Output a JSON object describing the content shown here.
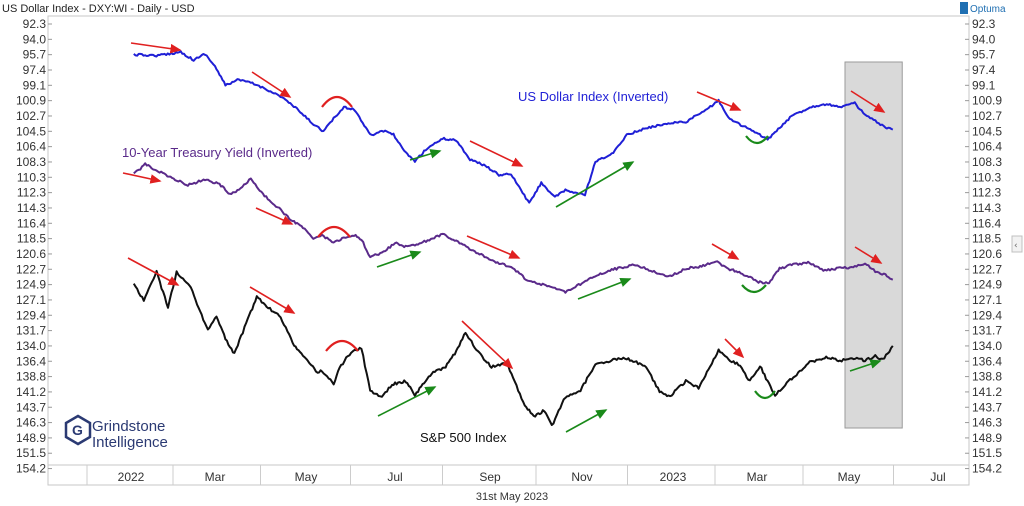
{
  "header": {
    "title": "US Dollar Index - DXY:WI - Daily - USD",
    "brand": "Optuma"
  },
  "footer": {
    "date": "31st May 2023"
  },
  "logo": {
    "line1": "Grindstone",
    "line2": "Intelligence"
  },
  "chart_data": {
    "type": "line",
    "y_axis": {
      "inverted": true,
      "ticks": [
        "92.3",
        "94.0",
        "95.7",
        "97.4",
        "99.1",
        "100.9",
        "102.7",
        "104.5",
        "106.4",
        "108.3",
        "110.3",
        "112.3",
        "114.3",
        "116.4",
        "118.5",
        "120.6",
        "122.7",
        "124.9",
        "127.1",
        "129.4",
        "131.7",
        "134.0",
        "136.4",
        "138.8",
        "141.2",
        "143.7",
        "146.3",
        "148.9",
        "151.5",
        "154.2"
      ]
    },
    "x_axis": {
      "categories": [
        "2022",
        "Mar",
        "May",
        "Jul",
        "Sep",
        "Nov",
        "2023",
        "Mar",
        "May",
        "Jul"
      ]
    },
    "series": [
      {
        "name": "US Dollar Index (Inverted)",
        "color": "#1f1fd6",
        "points": [
          [
            "2022-01-03",
            95.7
          ],
          [
            "2022-01-20",
            95.8
          ],
          [
            "2022-02-05",
            95.4
          ],
          [
            "2022-02-14",
            96.3
          ],
          [
            "2022-02-22",
            95.6
          ],
          [
            "2022-03-01",
            97.0
          ],
          [
            "2022-03-08",
            99.1
          ],
          [
            "2022-03-16",
            98.5
          ],
          [
            "2022-03-25",
            98.8
          ],
          [
            "2022-04-05",
            99.6
          ],
          [
            "2022-04-15",
            100.5
          ],
          [
            "2022-04-25",
            101.9
          ],
          [
            "2022-05-05",
            103.5
          ],
          [
            "2022-05-13",
            104.5
          ],
          [
            "2022-05-20",
            103.0
          ],
          [
            "2022-05-27",
            101.7
          ],
          [
            "2022-06-03",
            101.9
          ],
          [
            "2022-06-10",
            103.8
          ],
          [
            "2022-06-15",
            105.0
          ],
          [
            "2022-06-22",
            104.4
          ],
          [
            "2022-06-30",
            104.9
          ],
          [
            "2022-07-07",
            107.0
          ],
          [
            "2022-07-14",
            108.2
          ],
          [
            "2022-07-22",
            106.6
          ],
          [
            "2022-08-01",
            105.4
          ],
          [
            "2022-08-10",
            105.6
          ],
          [
            "2022-08-19",
            108.0
          ],
          [
            "2022-08-29",
            108.8
          ],
          [
            "2022-09-07",
            110.0
          ],
          [
            "2022-09-15",
            109.9
          ],
          [
            "2022-09-27",
            113.7
          ],
          [
            "2022-10-05",
            111.0
          ],
          [
            "2022-10-14",
            112.9
          ],
          [
            "2022-10-21",
            112.0
          ],
          [
            "2022-11-03",
            112.6
          ],
          [
            "2022-11-10",
            108.3
          ],
          [
            "2022-11-22",
            107.2
          ],
          [
            "2022-12-01",
            104.9
          ],
          [
            "2022-12-15",
            104.1
          ],
          [
            "2022-12-30",
            103.5
          ],
          [
            "2023-01-10",
            103.4
          ],
          [
            "2023-01-25",
            101.9
          ],
          [
            "2023-02-02",
            100.9
          ],
          [
            "2023-02-10",
            103.1
          ],
          [
            "2023-02-22",
            104.1
          ],
          [
            "2023-03-08",
            105.5
          ],
          [
            "2023-03-15",
            104.3
          ],
          [
            "2023-03-24",
            102.7
          ],
          [
            "2023-04-05",
            101.7
          ],
          [
            "2023-04-14",
            101.3
          ],
          [
            "2023-04-26",
            101.6
          ],
          [
            "2023-05-05",
            101.2
          ],
          [
            "2023-05-12",
            102.6
          ],
          [
            "2023-05-19",
            103.3
          ],
          [
            "2023-05-26",
            104.1
          ],
          [
            "2023-05-31",
            104.3
          ]
        ]
      },
      {
        "name": "10-Year Treasury Yield (Inverted)",
        "color": "#5a2a8a",
        "points": [
          [
            "2022-01-03",
            109.9
          ],
          [
            "2022-01-11",
            108.6
          ],
          [
            "2022-01-20",
            109.5
          ],
          [
            "2022-02-01",
            110.6
          ],
          [
            "2022-02-10",
            111.3
          ],
          [
            "2022-02-22",
            110.6
          ],
          [
            "2022-03-04",
            111.2
          ],
          [
            "2022-03-11",
            112.5
          ],
          [
            "2022-03-17",
            111.9
          ],
          [
            "2022-03-25",
            110.5
          ],
          [
            "2022-04-01",
            112.3
          ],
          [
            "2022-04-12",
            114.2
          ],
          [
            "2022-04-22",
            116.1
          ],
          [
            "2022-04-29",
            117.0
          ],
          [
            "2022-05-06",
            118.6
          ],
          [
            "2022-05-12",
            118.0
          ],
          [
            "2022-05-20",
            119.1
          ],
          [
            "2022-05-27",
            118.4
          ],
          [
            "2022-06-03",
            118.0
          ],
          [
            "2022-06-08",
            118.6
          ],
          [
            "2022-06-14",
            121.0
          ],
          [
            "2022-06-22",
            120.5
          ],
          [
            "2022-07-01",
            119.1
          ],
          [
            "2022-07-08",
            119.6
          ],
          [
            "2022-07-18",
            119.1
          ],
          [
            "2022-08-01",
            117.9
          ],
          [
            "2022-08-10",
            118.8
          ],
          [
            "2022-08-22",
            120.3
          ],
          [
            "2022-09-06",
            121.8
          ],
          [
            "2022-09-15",
            122.4
          ],
          [
            "2022-09-26",
            124.3
          ],
          [
            "2022-10-06",
            124.9
          ],
          [
            "2022-10-14",
            125.4
          ],
          [
            "2022-10-21",
            126.0
          ],
          [
            "2022-11-01",
            124.7
          ],
          [
            "2022-11-10",
            123.7
          ],
          [
            "2022-11-22",
            122.7
          ],
          [
            "2022-12-07",
            122.1
          ],
          [
            "2022-12-16",
            122.8
          ],
          [
            "2022-12-29",
            123.8
          ],
          [
            "2023-01-10",
            122.6
          ],
          [
            "2023-01-20",
            122.3
          ],
          [
            "2023-02-01",
            121.7
          ],
          [
            "2023-02-10",
            122.7
          ],
          [
            "2023-02-22",
            123.6
          ],
          [
            "2023-03-02",
            124.5
          ],
          [
            "2023-03-09",
            124.7
          ],
          [
            "2023-03-16",
            122.6
          ],
          [
            "2023-03-24",
            122.1
          ],
          [
            "2023-04-05",
            121.8
          ],
          [
            "2023-04-14",
            122.9
          ],
          [
            "2023-04-25",
            122.5
          ],
          [
            "2023-05-05",
            122.4
          ],
          [
            "2023-05-12",
            121.9
          ],
          [
            "2023-05-19",
            123.0
          ],
          [
            "2023-05-26",
            123.5
          ],
          [
            "2023-05-31",
            124.2
          ]
        ]
      },
      {
        "name": "S&P 500 Index",
        "color": "#111111",
        "points": [
          [
            "2022-01-03",
            124.9
          ],
          [
            "2022-01-10",
            127.1
          ],
          [
            "2022-01-19",
            123.1
          ],
          [
            "2022-01-27",
            128.3
          ],
          [
            "2022-02-02",
            123.1
          ],
          [
            "2022-02-11",
            124.9
          ],
          [
            "2022-02-24",
            131.7
          ],
          [
            "2022-03-02",
            129.4
          ],
          [
            "2022-03-08",
            133.0
          ],
          [
            "2022-03-14",
            135.2
          ],
          [
            "2022-03-23",
            130.0
          ],
          [
            "2022-03-29",
            126.7
          ],
          [
            "2022-04-08",
            128.7
          ],
          [
            "2022-04-14",
            129.6
          ],
          [
            "2022-04-22",
            133.5
          ],
          [
            "2022-04-29",
            135.5
          ],
          [
            "2022-05-09",
            138.2
          ],
          [
            "2022-05-12",
            137.9
          ],
          [
            "2022-05-20",
            139.9
          ],
          [
            "2022-05-24",
            137.4
          ],
          [
            "2022-06-01",
            134.9
          ],
          [
            "2022-06-08",
            134.3
          ],
          [
            "2022-06-14",
            141.0
          ],
          [
            "2022-06-22",
            142.1
          ],
          [
            "2022-06-29",
            140.0
          ],
          [
            "2022-07-08",
            139.5
          ],
          [
            "2022-07-14",
            141.7
          ],
          [
            "2022-07-25",
            138.3
          ],
          [
            "2022-08-03",
            137.3
          ],
          [
            "2022-08-10",
            134.8
          ],
          [
            "2022-08-16",
            132.0
          ],
          [
            "2022-08-24",
            134.9
          ],
          [
            "2022-09-02",
            137.3
          ],
          [
            "2022-09-12",
            136.6
          ],
          [
            "2022-09-23",
            142.9
          ],
          [
            "2022-09-30",
            145.3
          ],
          [
            "2022-10-07",
            144.2
          ],
          [
            "2022-10-12",
            146.9
          ],
          [
            "2022-10-21",
            142.0
          ],
          [
            "2022-10-31",
            140.9
          ],
          [
            "2022-11-10",
            136.9
          ],
          [
            "2022-11-22",
            136.2
          ],
          [
            "2022-12-01",
            135.9
          ],
          [
            "2022-12-14",
            137.3
          ],
          [
            "2022-12-23",
            141.1
          ],
          [
            "2022-12-30",
            141.9
          ],
          [
            "2023-01-10",
            139.5
          ],
          [
            "2023-01-19",
            140.6
          ],
          [
            "2023-02-02",
            134.7
          ],
          [
            "2023-02-09",
            136.1
          ],
          [
            "2023-02-16",
            136.9
          ],
          [
            "2023-02-24",
            139.5
          ],
          [
            "2023-03-03",
            137.1
          ],
          [
            "2023-03-09",
            140.0
          ],
          [
            "2023-03-13",
            141.7
          ],
          [
            "2023-03-24",
            139.1
          ],
          [
            "2023-04-05",
            136.6
          ],
          [
            "2023-04-17",
            135.8
          ],
          [
            "2023-04-25",
            136.4
          ],
          [
            "2023-05-03",
            135.8
          ],
          [
            "2023-05-12",
            136.3
          ],
          [
            "2023-05-19",
            135.6
          ],
          [
            "2023-05-24",
            136.2
          ],
          [
            "2023-05-31",
            134.0
          ]
        ]
      }
    ],
    "annotations": [
      {
        "type": "shaded_region",
        "from": "2023-05-01",
        "to": "2023-06-01"
      },
      {
        "type": "text",
        "text": "US Dollar Index (Inverted)"
      },
      {
        "type": "text",
        "text": "10-Year Treasury Yield (Inverted)"
      },
      {
        "type": "text",
        "text": "S&P 500 Index"
      }
    ]
  }
}
